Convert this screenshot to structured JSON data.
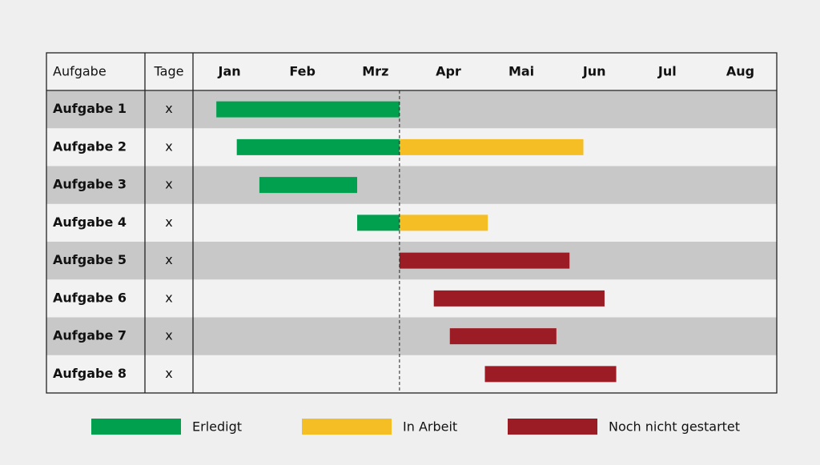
{
  "chart_data": {
    "type": "gantt",
    "header": {
      "task": "Aufgabe",
      "days": "Tage"
    },
    "categories": [
      "Jan",
      "Feb",
      "Mrz",
      "Apr",
      "Mai",
      "Jun",
      "Jul",
      "Aug"
    ],
    "xlim": [
      0,
      8
    ],
    "tasks": [
      "Aufgabe 1",
      "Aufgabe 2",
      "Aufgabe 3",
      "Aufgabe 4",
      "Aufgabe 5",
      "Aufgabe 6",
      "Aufgabe 7",
      "Aufgabe 8"
    ],
    "days": [
      "x",
      "x",
      "x",
      "x",
      "x",
      "x",
      "x",
      "x"
    ],
    "today": 2.83,
    "series": [
      {
        "name": "Erledigt",
        "color": "#00a04f",
        "values": [
          [
            0.32,
            2.83
          ],
          [
            0.6,
            2.83
          ],
          [
            0.91,
            2.25
          ],
          [
            2.25,
            2.83
          ],
          null,
          null,
          null,
          null
        ]
      },
      {
        "name": "In Arbeit",
        "color": "#f4be24",
        "values": [
          null,
          [
            2.83,
            5.35
          ],
          null,
          [
            2.83,
            4.04
          ],
          null,
          null,
          null,
          null
        ]
      },
      {
        "name": "Noch nicht gestartet",
        "color": "#9b1c24",
        "values": [
          null,
          null,
          null,
          null,
          [
            2.83,
            5.16
          ],
          [
            3.3,
            5.64
          ],
          [
            3.52,
            4.98
          ],
          [
            4.0,
            5.8
          ]
        ]
      }
    ]
  }
}
